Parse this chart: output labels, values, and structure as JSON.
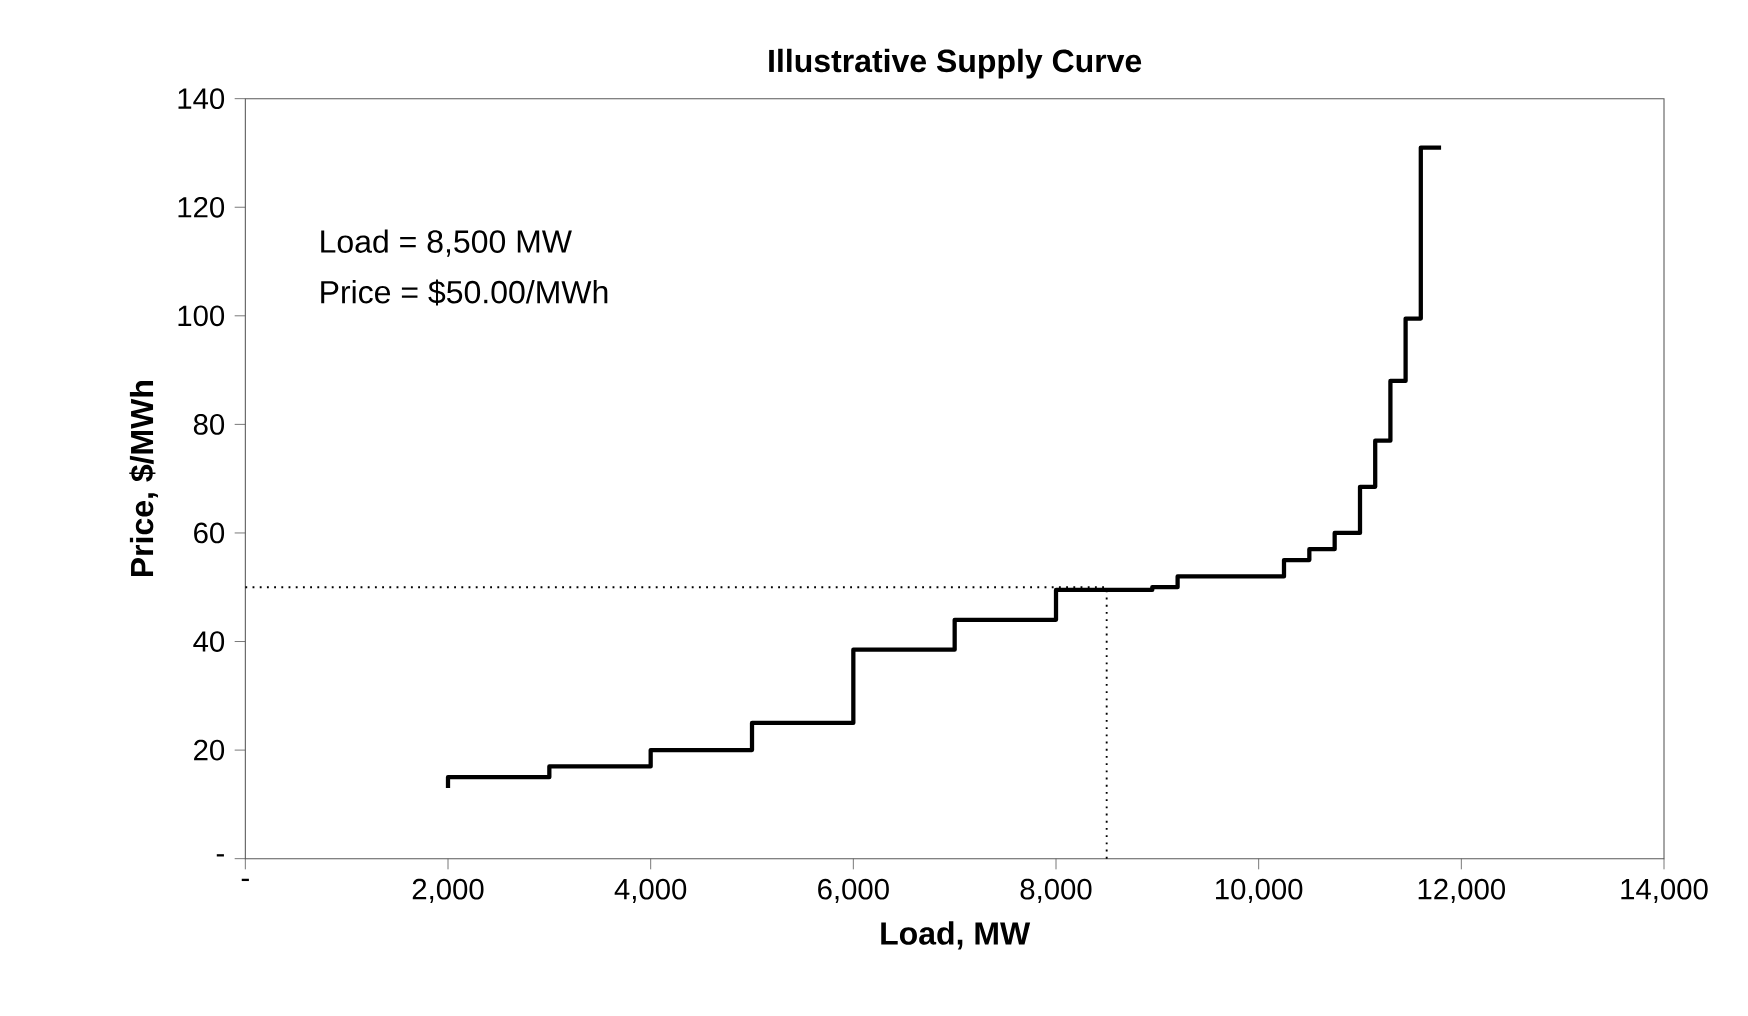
{
  "chart_data": {
    "type": "step",
    "title": "Illustrative Supply Curve",
    "xlabel": "Load, MW",
    "ylabel": "Price, $/MWh",
    "x": [
      2000,
      2000,
      3000,
      4000,
      5000,
      6000,
      7000,
      8000,
      8950,
      9200,
      10250,
      10500,
      10750,
      11000,
      11150,
      11300,
      11450,
      11600,
      11800
    ],
    "values": [
      13,
      15,
      17,
      20,
      25,
      38.5,
      44,
      49.5,
      50,
      52,
      55,
      57,
      60,
      68.5,
      77,
      88,
      99.5,
      131,
      131
    ],
    "color": "#000000",
    "xlim": [
      0,
      14000
    ],
    "xticks": [
      {
        "value": 0,
        "label": "-"
      },
      {
        "value": 2000,
        "label": "2,000"
      },
      {
        "value": 4000,
        "label": "4,000"
      },
      {
        "value": 6000,
        "label": "6,000"
      },
      {
        "value": 8000,
        "label": "8,000"
      },
      {
        "value": 10000,
        "label": "10,000"
      },
      {
        "value": 12000,
        "label": "12,000"
      },
      {
        "value": 14000,
        "label": "14,000"
      }
    ],
    "ylim": [
      0,
      140
    ],
    "yticks": [
      {
        "value": 0,
        "label": "-"
      },
      20,
      40,
      60,
      80,
      100,
      120,
      140
    ],
    "ref_lines": [
      {
        "axis": "y",
        "value": 50,
        "line_style": "dotted",
        "color": "#000000"
      },
      {
        "axis": "x",
        "value": 8500,
        "line_style": "dotted",
        "color": "#000000"
      }
    ],
    "annotations": [
      "Load = 8,500 MW",
      "Price = $50.00/MWh"
    ],
    "grid": false,
    "marker": "none",
    "line_style": "solid"
  }
}
